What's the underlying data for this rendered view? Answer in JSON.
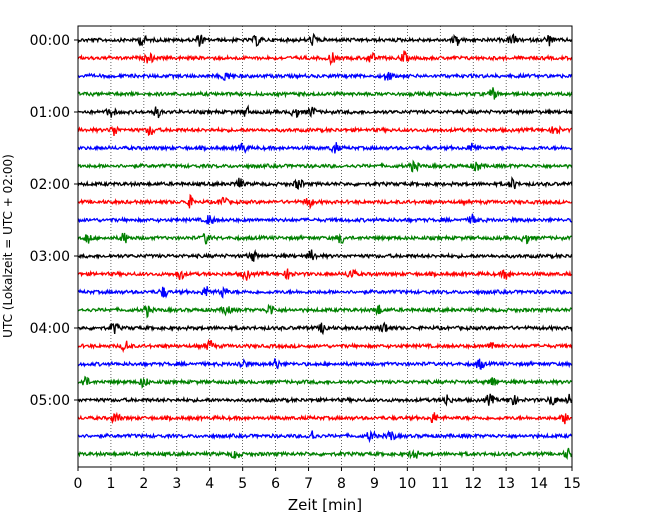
{
  "chart_data": {
    "type": "line",
    "title": "",
    "xlabel": "Zeit  [min]",
    "ylabel": "UTC (Lokalzeit = UTC + 02:00)",
    "xlim": [
      0,
      15
    ],
    "x_ticks": [
      "0",
      "1",
      "2",
      "3",
      "4",
      "5",
      "6",
      "7",
      "8",
      "9",
      "10",
      "11",
      "12",
      "13",
      "14",
      "15"
    ],
    "y_ticks": [
      "00:00",
      "01:00",
      "02:00",
      "03:00",
      "04:00",
      "05:00"
    ],
    "grid": "vertical dotted at each minute",
    "line_minutes": 15,
    "colors": [
      "#000000",
      "#ff0000",
      "#0000ff",
      "#008000"
    ],
    "series": [
      {
        "start": "00:00",
        "events": [
          1.95,
          3.7,
          5.45,
          7.15,
          11.5,
          13.2,
          14.3
        ]
      },
      {
        "start": "00:15",
        "events": [
          2.15,
          7.7,
          8.9,
          9.9
        ]
      },
      {
        "start": "00:30",
        "events": [
          4.5,
          9.4
        ]
      },
      {
        "start": "00:45",
        "events": [
          12.6
        ]
      },
      {
        "start": "01:00",
        "events": [
          1.0,
          2.4,
          5.1,
          6.6,
          7.1
        ]
      },
      {
        "start": "01:15",
        "events": [
          1.1,
          2.2,
          14.5
        ]
      },
      {
        "start": "01:30",
        "events": [
          5.0,
          7.8,
          12.0
        ]
      },
      {
        "start": "01:45",
        "events": [
          10.2,
          12.1
        ]
      },
      {
        "start": "02:00",
        "events": [
          4.9,
          6.7,
          13.2
        ]
      },
      {
        "start": "02:15",
        "events": [
          3.4,
          4.4,
          7.0
        ]
      },
      {
        "start": "02:30",
        "events": [
          4.0,
          12.0
        ]
      },
      {
        "start": "02:45",
        "events": [
          0.3,
          1.4,
          3.9,
          8.0,
          13.6
        ]
      },
      {
        "start": "03:00",
        "events": [
          5.3,
          7.1
        ]
      },
      {
        "start": "03:15",
        "events": [
          3.1,
          5.1,
          6.4,
          8.3,
          13.0
        ]
      },
      {
        "start": "03:30",
        "events": [
          2.6,
          3.9,
          4.4
        ]
      },
      {
        "start": "03:45",
        "events": [
          2.1,
          4.5,
          5.85,
          9.1
        ]
      },
      {
        "start": "04:00",
        "events": [
          1.1,
          7.45,
          9.3
        ]
      },
      {
        "start": "04:15",
        "events": [
          1.45,
          4.0,
          12.6
        ]
      },
      {
        "start": "04:30",
        "events": [
          5.0,
          6.0,
          12.2
        ]
      },
      {
        "start": "04:45",
        "events": [
          0.2,
          2.0,
          12.6
        ]
      },
      {
        "start": "05:00",
        "events": [
          11.2,
          12.5,
          13.2,
          14.4,
          14.95
        ]
      },
      {
        "start": "05:15",
        "events": [
          1.15,
          10.8,
          14.8
        ]
      },
      {
        "start": "05:30",
        "events": [
          7.1,
          8.9,
          9.5
        ]
      },
      {
        "start": "05:45",
        "events": [
          4.8,
          10.2,
          14.9
        ]
      }
    ]
  }
}
